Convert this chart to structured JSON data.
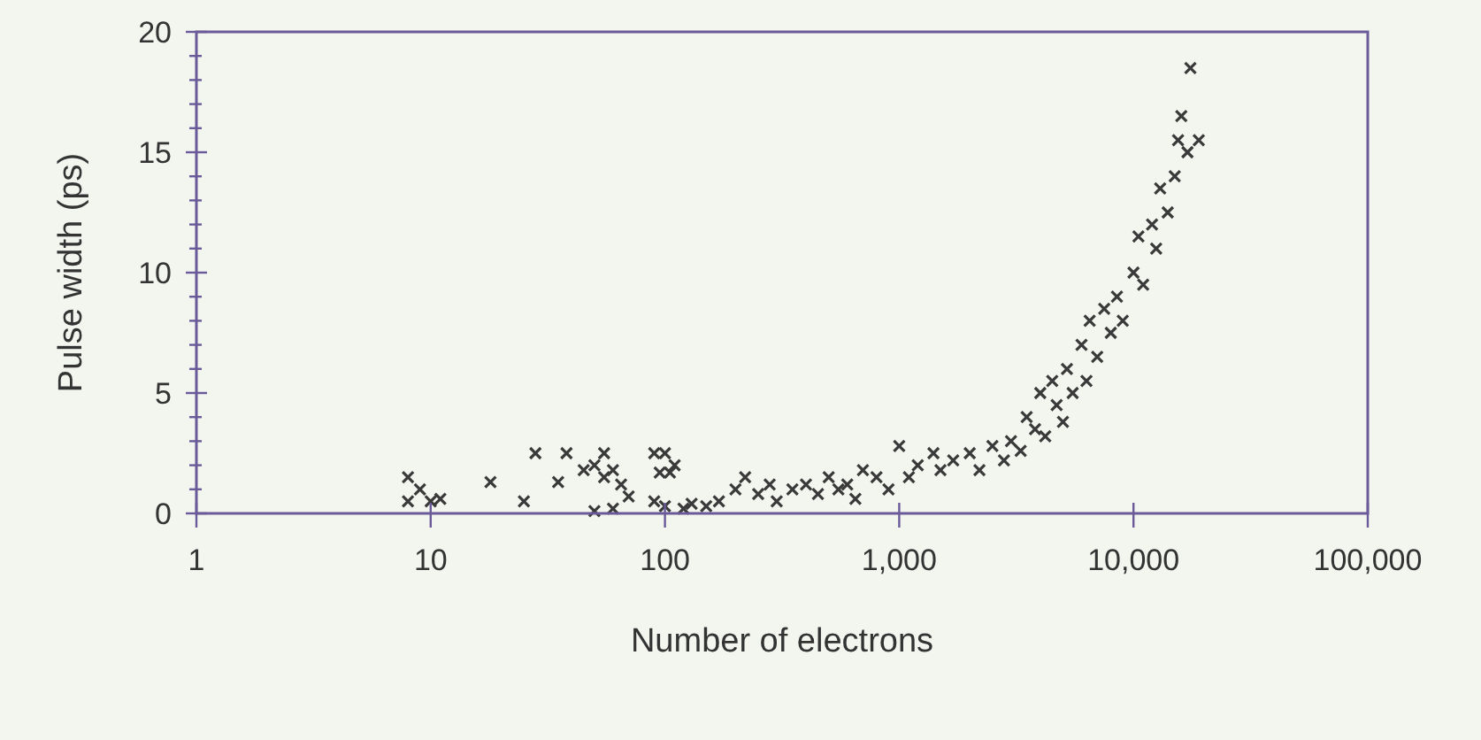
{
  "chart_data": {
    "type": "scatter",
    "xlabel": "Number of electrons",
    "ylabel": "Pulse width (ps)",
    "log": "x",
    "marker": "cross",
    "grid": false,
    "xlim": [
      1,
      100000
    ],
    "xticks": [
      1,
      10,
      100,
      {
        "value": 1000,
        "label": "1,000"
      },
      {
        "value": 10000,
        "label": "10,000"
      },
      {
        "value": 100000,
        "label": "100,000"
      }
    ],
    "ylim": [
      0,
      20
    ],
    "yticks": [
      0,
      {
        "value": 1,
        "label": null
      },
      {
        "value": 2,
        "label": null
      },
      {
        "value": 3,
        "label": null
      },
      {
        "value": 4,
        "label": null
      },
      5,
      {
        "value": 6,
        "label": null
      },
      {
        "value": 7,
        "label": null
      },
      {
        "value": 8,
        "label": null
      },
      {
        "value": 9,
        "label": null
      },
      10,
      {
        "value": 11,
        "label": null
      },
      {
        "value": 12,
        "label": null
      },
      {
        "value": 13,
        "label": null
      },
      {
        "value": 14,
        "label": null
      },
      15,
      {
        "value": 16,
        "label": null
      },
      {
        "value": 17,
        "label": null
      },
      {
        "value": 18,
        "label": null
      },
      {
        "value": 19,
        "label": null
      },
      20
    ],
    "series": [
      {
        "color": "#3a3a3a",
        "x": [
          8,
          8,
          9,
          10,
          11,
          18,
          25,
          28,
          35,
          38,
          45,
          50,
          55,
          55,
          60,
          65,
          70,
          50,
          60,
          90,
          100,
          95,
          105,
          110,
          90,
          100,
          120,
          130,
          150,
          170,
          200,
          220,
          250,
          280,
          300,
          350,
          400,
          450,
          500,
          550,
          600,
          650,
          700,
          800,
          900,
          1000,
          1100,
          1200,
          1400,
          1500,
          1700,
          2000,
          2200,
          2500,
          2800,
          3000,
          3300,
          3500,
          3800,
          4000,
          4200,
          4500,
          4700,
          5000,
          5200,
          5500,
          6000,
          6300,
          6500,
          7000,
          7500,
          8000,
          8500,
          9000,
          10000,
          10500,
          11000,
          12000,
          12500,
          13000,
          14000,
          15000,
          15500,
          16000,
          17000,
          17500,
          19000
        ],
        "values": [
          1.5,
          0.5,
          1,
          0.5,
          0.6,
          1.3,
          0.5,
          2.5,
          1.3,
          2.5,
          1.8,
          2,
          2.5,
          1.5,
          1.8,
          1.2,
          0.7,
          0.1,
          0.2,
          2.5,
          2.5,
          1.7,
          1.7,
          2,
          0.5,
          0.3,
          0.2,
          0.4,
          0.3,
          0.5,
          1,
          1.5,
          0.8,
          1.2,
          0.5,
          1,
          1.2,
          0.8,
          1.5,
          1,
          1.2,
          0.6,
          1.8,
          1.5,
          1,
          2.8,
          1.5,
          2,
          2.5,
          1.8,
          2.2,
          2.5,
          1.8,
          2.8,
          2.2,
          3,
          2.6,
          4,
          3.5,
          5,
          3.2,
          5.5,
          4.5,
          3.8,
          6,
          5,
          7,
          5.5,
          8,
          6.5,
          8.5,
          7.5,
          9,
          8,
          10,
          11.5,
          9.5,
          12,
          11,
          13.5,
          12.5,
          14,
          15.5,
          16.5,
          15,
          18.5,
          15.5
        ]
      }
    ]
  }
}
